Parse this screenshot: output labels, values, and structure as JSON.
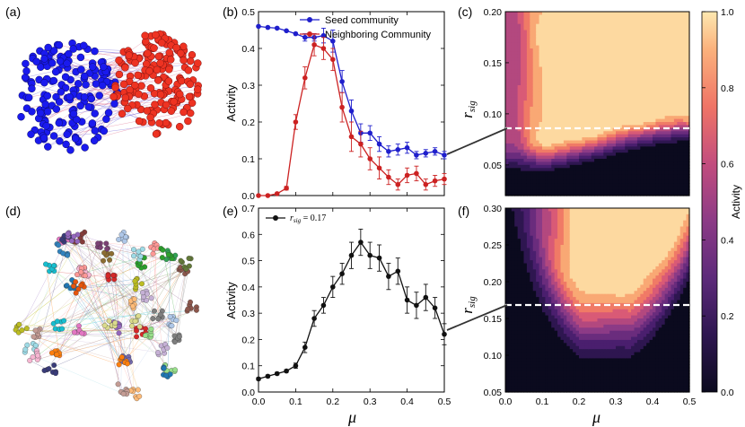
{
  "panel_labels": {
    "a": "(a)",
    "b": "(b)",
    "c": "(c)",
    "d": "(d)",
    "e": "(e)",
    "f": "(f)"
  },
  "colors": {
    "seed": "#1f1fcc",
    "neighbor": "#cc2222",
    "blue_node": "#1a1aee",
    "red_node": "#ee3322",
    "black": "#111111"
  },
  "colorbar": {
    "label": "Activity",
    "ticks": [
      "0.0",
      "0.2",
      "0.4",
      "0.6",
      "0.8",
      "1.0"
    ]
  },
  "axis_symbols": {
    "mu": "μ",
    "r_sig": "r",
    "r_sig_sub": "sig"
  },
  "chart_data": [
    {
      "id": "b",
      "type": "line",
      "ylabel": "Activity",
      "xlabel": "",
      "xlim": [
        0,
        0.5
      ],
      "ylim": [
        0,
        0.5
      ],
      "yticks": [
        "0.0",
        "0.1",
        "0.2",
        "0.3",
        "0.4",
        "0.5"
      ],
      "legend": [
        "Seed community",
        "Neighboring Community"
      ],
      "series": [
        {
          "name": "Seed community",
          "x": [
            0,
            0.025,
            0.05,
            0.075,
            0.1,
            0.125,
            0.15,
            0.175,
            0.2,
            0.225,
            0.25,
            0.275,
            0.3,
            0.325,
            0.35,
            0.375,
            0.4,
            0.425,
            0.45,
            0.475,
            0.5
          ],
          "y": [
            0.46,
            0.457,
            0.455,
            0.448,
            0.44,
            0.43,
            0.43,
            0.435,
            0.42,
            0.31,
            0.23,
            0.17,
            0.17,
            0.14,
            0.12,
            0.125,
            0.13,
            0.11,
            0.115,
            0.12,
            0.11
          ],
          "err": [
            0,
            0,
            0,
            0,
            0,
            0.01,
            0.01,
            0.02,
            0.03,
            0.03,
            0.03,
            0.025,
            0.02,
            0.02,
            0.015,
            0.015,
            0.015,
            0.01,
            0.01,
            0.01,
            0.01
          ]
        },
        {
          "name": "Neighboring Community",
          "x": [
            0,
            0.025,
            0.05,
            0.075,
            0.1,
            0.125,
            0.15,
            0.175,
            0.2,
            0.225,
            0.25,
            0.275,
            0.3,
            0.325,
            0.35,
            0.375,
            0.4,
            0.425,
            0.45,
            0.475,
            0.5
          ],
          "y": [
            0,
            0,
            0.005,
            0.02,
            0.2,
            0.32,
            0.41,
            0.4,
            0.37,
            0.24,
            0.16,
            0.14,
            0.1,
            0.075,
            0.05,
            0.03,
            0.055,
            0.06,
            0.03,
            0.04,
            0.045
          ],
          "err": [
            0,
            0,
            0,
            0.005,
            0.02,
            0.03,
            0.03,
            0.03,
            0.03,
            0.04,
            0.04,
            0.035,
            0.03,
            0.03,
            0.02,
            0.015,
            0.02,
            0.02,
            0.015,
            0.015,
            0.015
          ]
        }
      ]
    },
    {
      "id": "e",
      "type": "line",
      "ylabel": "Activity",
      "xlabel": "μ",
      "xlim": [
        0,
        0.5
      ],
      "ylim": [
        0,
        0.7
      ],
      "xticks": [
        "0.0",
        "0.1",
        "0.2",
        "0.3",
        "0.4",
        "0.5"
      ],
      "yticks": [
        "0.0",
        "0.1",
        "0.2",
        "0.3",
        "0.4",
        "0.5",
        "0.6",
        "0.7"
      ],
      "legend": [
        "r_sig = 0.17"
      ],
      "series": [
        {
          "name": "r_sig = 0.17",
          "x": [
            0,
            0.025,
            0.05,
            0.075,
            0.1,
            0.125,
            0.15,
            0.175,
            0.2,
            0.225,
            0.25,
            0.275,
            0.3,
            0.325,
            0.35,
            0.375,
            0.4,
            0.425,
            0.45,
            0.475,
            0.5
          ],
          "y": [
            0.05,
            0.06,
            0.07,
            0.08,
            0.1,
            0.17,
            0.28,
            0.33,
            0.4,
            0.45,
            0.52,
            0.57,
            0.52,
            0.51,
            0.44,
            0.46,
            0.35,
            0.33,
            0.36,
            0.32,
            0.22
          ],
          "err": [
            0.005,
            0.005,
            0.005,
            0.005,
            0.01,
            0.02,
            0.03,
            0.03,
            0.04,
            0.04,
            0.05,
            0.05,
            0.05,
            0.05,
            0.05,
            0.05,
            0.05,
            0.05,
            0.05,
            0.04,
            0.04
          ]
        }
      ]
    },
    {
      "id": "c",
      "type": "heatmap",
      "ylabel": "r_sig",
      "xlim": [
        0,
        0.5
      ],
      "ylim": [
        0.02,
        0.2
      ],
      "yticks": [
        "0.05",
        "0.10",
        "0.15",
        "0.20"
      ],
      "threshold": 0.08
    },
    {
      "id": "f",
      "type": "heatmap",
      "ylabel": "r_sig",
      "xlabel": "μ",
      "xlim": [
        0,
        0.5
      ],
      "ylim": [
        0.05,
        0.3
      ],
      "xticks": [
        "0.0",
        "0.1",
        "0.2",
        "0.3",
        "0.4",
        "0.5"
      ],
      "yticks": [
        "0.05",
        "0.10",
        "0.15",
        "0.20",
        "0.25",
        "0.30"
      ],
      "threshold": 0.17
    }
  ]
}
